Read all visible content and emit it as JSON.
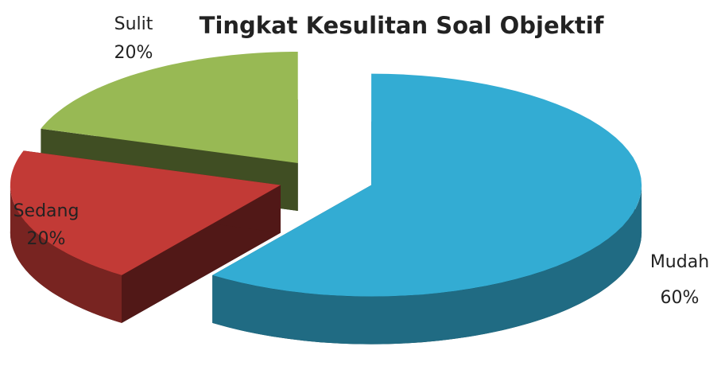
{
  "chart_data": {
    "type": "pie3d",
    "title": "Tingkat Kesulitan Soal Objektif",
    "categories": [
      "Mudah",
      "Sedang",
      "Sulit"
    ],
    "values": [
      60,
      20,
      20
    ],
    "value_labels": [
      "60%",
      "20%",
      "20%"
    ],
    "colors": [
      "#33acd3",
      "#c23a36",
      "#98b954"
    ]
  }
}
